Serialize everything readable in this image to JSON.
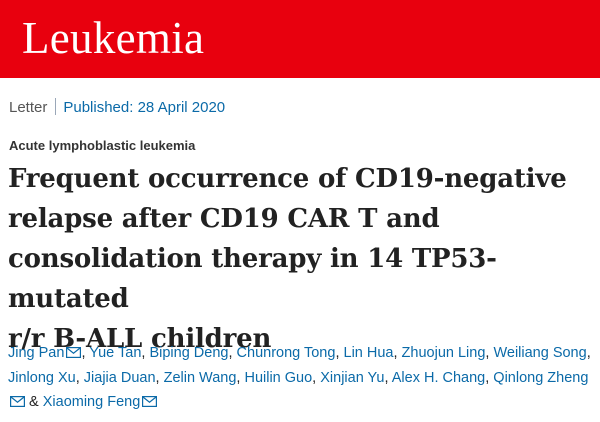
{
  "header": {
    "journal_title": "Leukemia",
    "brand_color": "#e8000e"
  },
  "article": {
    "type": "Letter",
    "published": "Published: 28 April 2020",
    "subject": "Acute lymphoblastic leukemia",
    "title_lines": [
      "Frequent occurrence of CD19-negative",
      "relapse after CD19 CAR T and",
      "consolidation therapy in 14 TP53-mutated",
      "r/r B-ALL children"
    ],
    "authors": [
      {
        "name": "Jing Pan",
        "email_icon": true
      },
      {
        "name": "Yue Tan"
      },
      {
        "name": "Biping Deng"
      },
      {
        "name": "Chunrong Tong"
      },
      {
        "name": "Lin Hua"
      },
      {
        "name": "Zhuojun Ling"
      },
      {
        "name": "Weiliang Song"
      },
      {
        "name": "Jinlong Xu"
      },
      {
        "name": "Jiajia Duan"
      },
      {
        "name": "Zelin Wang"
      },
      {
        "name": "Huilin Guo"
      },
      {
        "name": "Xinjian Yu"
      },
      {
        "name": "Alex H. Chang"
      },
      {
        "name": "Qinlong Zheng",
        "email_icon": true
      },
      {
        "name": "Xiaoming Feng",
        "email_icon": true
      }
    ],
    "separator": ",",
    "final_conjunction": "&",
    "link_color": "#0b6aa8"
  }
}
